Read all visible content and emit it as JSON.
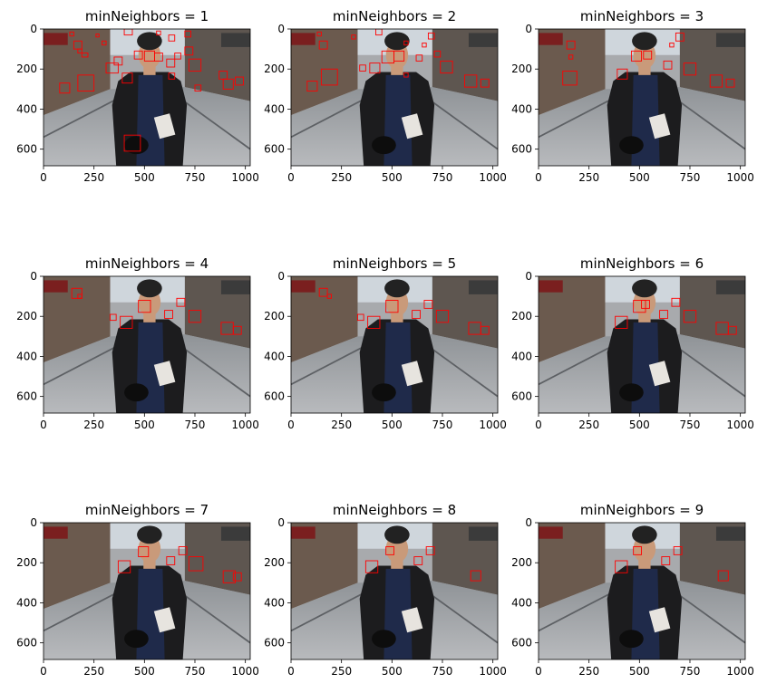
{
  "figure": {
    "x_ticks": [
      "0",
      "250",
      "500",
      "750",
      "1000"
    ],
    "y_ticks": [
      "0",
      "200",
      "400",
      "600"
    ],
    "detection_color": "#ff0000",
    "photo_colors": {
      "sky": "#cfd6dc",
      "building_left": "#6b5a4e",
      "building_right": "#5e5650",
      "road": "#a8aaad",
      "jacket": "#1c1c1e",
      "shirt": "#1f2a4a",
      "skin": "#c99a7a",
      "hair": "#222222"
    }
  },
  "subplots": [
    {
      "title": "minNeighbors = 1"
    },
    {
      "title": "minNeighbors = 2"
    },
    {
      "title": "minNeighbors = 3"
    },
    {
      "title": "minNeighbors = 4"
    },
    {
      "title": "minNeighbors = 5"
    },
    {
      "title": "minNeighbors = 6"
    },
    {
      "title": "minNeighbors = 7"
    },
    {
      "title": "minNeighbors = 8"
    },
    {
      "title": "minNeighbors = 9"
    }
  ],
  "detections": [
    [
      [
        130,
        15,
        20,
        20
      ],
      [
        260,
        25,
        15,
        15
      ],
      [
        290,
        60,
        20,
        20
      ],
      [
        400,
        0,
        40,
        30
      ],
      [
        560,
        10,
        20,
        20
      ],
      [
        620,
        30,
        30,
        30
      ],
      [
        700,
        10,
        30,
        30
      ],
      [
        150,
        60,
        40,
        40
      ],
      [
        170,
        100,
        20,
        20
      ],
      [
        190,
        120,
        30,
        20
      ],
      [
        310,
        170,
        60,
        50
      ],
      [
        350,
        140,
        40,
        40
      ],
      [
        450,
        110,
        40,
        40
      ],
      [
        500,
        110,
        50,
        50
      ],
      [
        550,
        120,
        40,
        40
      ],
      [
        610,
        150,
        40,
        40
      ],
      [
        650,
        120,
        30,
        30
      ],
      [
        700,
        90,
        40,
        40
      ],
      [
        720,
        150,
        60,
        60
      ],
      [
        750,
        280,
        30,
        30
      ],
      [
        170,
        230,
        80,
        80
      ],
      [
        80,
        270,
        50,
        50
      ],
      [
        390,
        220,
        50,
        50
      ],
      [
        870,
        210,
        40,
        40
      ],
      [
        890,
        250,
        50,
        50
      ],
      [
        950,
        240,
        40,
        40
      ],
      [
        400,
        530,
        80,
        80
      ],
      [
        620,
        220,
        30,
        30
      ]
    ],
    [
      [
        130,
        15,
        20,
        20
      ],
      [
        300,
        30,
        20,
        20
      ],
      [
        420,
        0,
        30,
        30
      ],
      [
        680,
        20,
        30,
        30
      ],
      [
        650,
        70,
        20,
        20
      ],
      [
        140,
        60,
        40,
        40
      ],
      [
        560,
        60,
        20,
        20
      ],
      [
        150,
        200,
        80,
        80
      ],
      [
        80,
        260,
        50,
        50
      ],
      [
        340,
        180,
        30,
        30
      ],
      [
        390,
        170,
        50,
        50
      ],
      [
        450,
        110,
        60,
        60
      ],
      [
        510,
        110,
        50,
        50
      ],
      [
        620,
        130,
        30,
        30
      ],
      [
        710,
        110,
        30,
        30
      ],
      [
        740,
        160,
        60,
        60
      ],
      [
        860,
        230,
        60,
        60
      ],
      [
        940,
        250,
        40,
        40
      ],
      [
        560,
        220,
        20,
        20
      ]
    ],
    [
      [
        140,
        60,
        40,
        40
      ],
      [
        120,
        210,
        70,
        70
      ],
      [
        390,
        200,
        50,
        50
      ],
      [
        460,
        110,
        50,
        50
      ],
      [
        520,
        110,
        40,
        40
      ],
      [
        620,
        160,
        40,
        40
      ],
      [
        680,
        20,
        40,
        40
      ],
      [
        650,
        70,
        20,
        20
      ],
      [
        720,
        170,
        60,
        60
      ],
      [
        850,
        230,
        60,
        60
      ],
      [
        930,
        250,
        40,
        40
      ],
      [
        150,
        130,
        20,
        20
      ]
    ],
    [
      [
        140,
        60,
        50,
        50
      ],
      [
        170,
        90,
        20,
        20
      ],
      [
        380,
        200,
        60,
        60
      ],
      [
        470,
        120,
        60,
        60
      ],
      [
        600,
        170,
        40,
        40
      ],
      [
        660,
        110,
        40,
        40
      ],
      [
        720,
        170,
        60,
        60
      ],
      [
        880,
        230,
        60,
        60
      ],
      [
        940,
        250,
        40,
        40
      ],
      [
        330,
        190,
        30,
        30
      ]
    ],
    [
      [
        140,
        60,
        40,
        40
      ],
      [
        180,
        90,
        20,
        20
      ],
      [
        380,
        200,
        60,
        60
      ],
      [
        470,
        120,
        60,
        60
      ],
      [
        600,
        170,
        40,
        40
      ],
      [
        660,
        120,
        40,
        40
      ],
      [
        720,
        170,
        60,
        60
      ],
      [
        880,
        230,
        60,
        60
      ],
      [
        940,
        250,
        40,
        40
      ],
      [
        330,
        190,
        30,
        30
      ]
    ],
    [
      [
        380,
        200,
        60,
        60
      ],
      [
        470,
        120,
        60,
        60
      ],
      [
        510,
        120,
        40,
        40
      ],
      [
        600,
        170,
        40,
        40
      ],
      [
        660,
        110,
        40,
        40
      ],
      [
        720,
        170,
        60,
        60
      ],
      [
        880,
        230,
        60,
        60
      ],
      [
        940,
        250,
        40,
        40
      ]
    ],
    [
      [
        370,
        190,
        60,
        60
      ],
      [
        470,
        120,
        50,
        50
      ],
      [
        610,
        170,
        40,
        40
      ],
      [
        670,
        120,
        40,
        40
      ],
      [
        720,
        170,
        70,
        70
      ],
      [
        890,
        240,
        60,
        60
      ],
      [
        940,
        250,
        40,
        40
      ]
    ],
    [
      [
        370,
        190,
        60,
        60
      ],
      [
        470,
        120,
        40,
        40
      ],
      [
        610,
        170,
        40,
        40
      ],
      [
        670,
        120,
        40,
        40
      ],
      [
        890,
        240,
        50,
        50
      ]
    ],
    [
      [
        380,
        190,
        60,
        60
      ],
      [
        470,
        120,
        40,
        40
      ],
      [
        610,
        170,
        40,
        40
      ],
      [
        670,
        120,
        40,
        40
      ],
      [
        890,
        240,
        50,
        50
      ]
    ]
  ]
}
